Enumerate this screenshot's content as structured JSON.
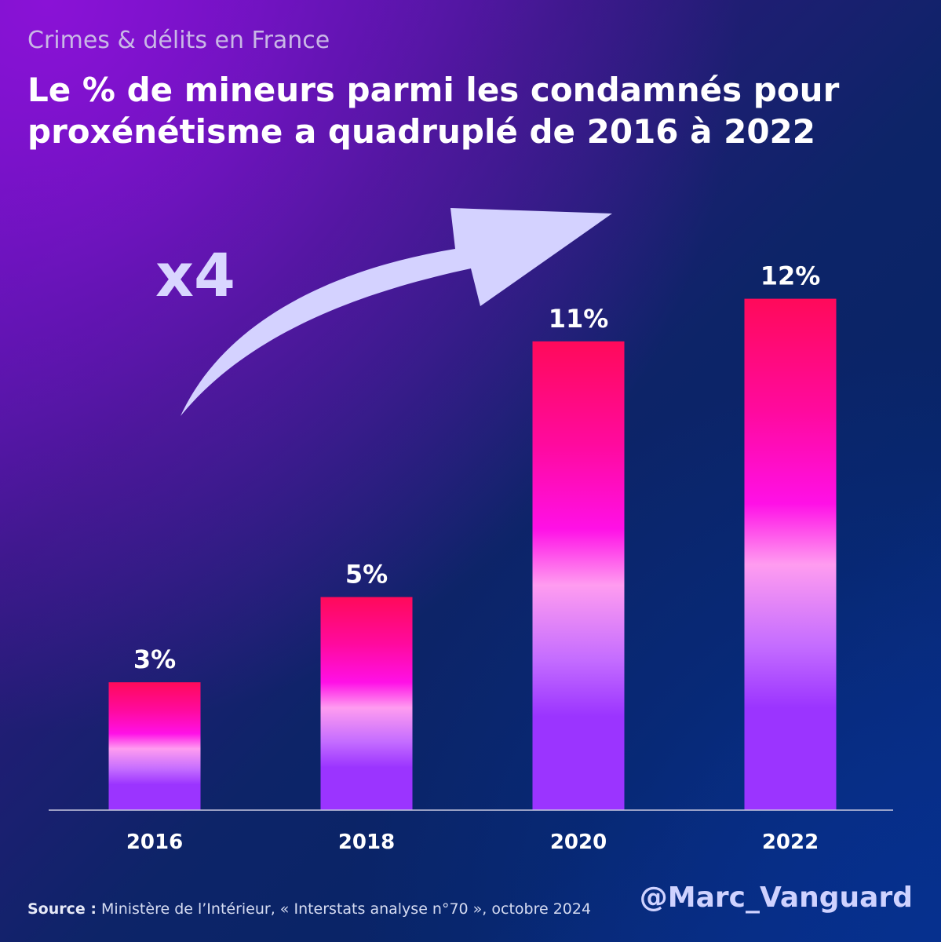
{
  "header": {
    "subtitle": "Crimes & délits en France",
    "title": "Le % de mineurs parmi les condamnés pour proxénétisme a quadruplé de 2016 à 2022"
  },
  "annotation": {
    "multiplier": "x4"
  },
  "chart_data": {
    "type": "bar",
    "title": "Le % de mineurs parmi les condamnés pour proxénétisme a quadruplé de 2016 à 2022",
    "categories": [
      "2016",
      "2018",
      "2020",
      "2022"
    ],
    "values": [
      3,
      5,
      11,
      12
    ],
    "value_labels": [
      "3%",
      "5%",
      "11%",
      "12%"
    ],
    "unit": "%",
    "xlabel": "",
    "ylabel": "",
    "ylim": [
      0,
      13.3
    ],
    "grid": false,
    "legend": "none"
  },
  "footer": {
    "source_label": "Source :",
    "source_text": " Ministère de l’Intérieur, « Interstats analyse n°70 », octobre 2024",
    "handle": "@Marc_Vanguard"
  },
  "colors": {
    "bar_top": "#ff0a5a",
    "bar_mid": "#ff10e6",
    "bar_light": "#ff9cf0",
    "bar_bottom": "#9b34ff",
    "arrow": "#d4d2ff",
    "axis": "#c8c8e0"
  }
}
